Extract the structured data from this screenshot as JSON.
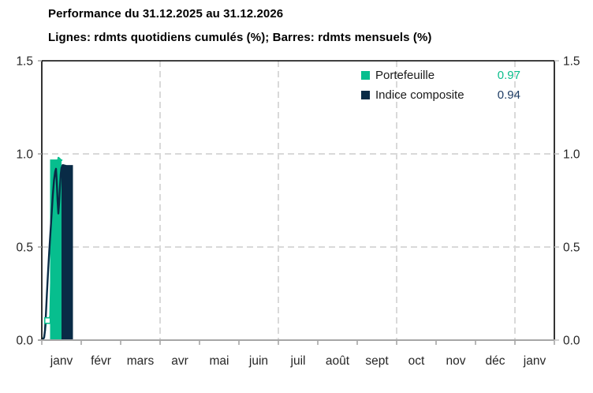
{
  "header": {
    "title": "Performance du 31.12.2025 au 31.12.2026",
    "subtitle": "Lignes: rdmts quotidiens cumulés (%); Barres: rdmts mensuels (%)"
  },
  "legend": {
    "items": [
      {
        "label": "Portefeuille",
        "value": "0.97",
        "swatch_color": "#07BE8E",
        "value_color": "#0CBE8C"
      },
      {
        "label": "Indice composite",
        "value": "0.94",
        "swatch_color": "#092B46",
        "value_color": "#1E3C64"
      }
    ]
  },
  "colors": {
    "portfolio": "#07BE8E",
    "index": "#092B46",
    "grid": "#D9D9D9",
    "x_axis_line": "#A6A6A6",
    "tick": "#A6A6A6",
    "plot_border": "#000000",
    "axis_text": "#262626"
  },
  "chart_data": {
    "type": "bar+line combo",
    "title": "Performance du 31.12.2025 au 31.12.2026",
    "subtitle": "Lignes: rdmts quotidiens cumulés (%); Barres: rdmts mensuels (%)",
    "x_categories": [
      "janv",
      "févr",
      "mars",
      "avr",
      "mai",
      "juin",
      "juil",
      "août",
      "sept",
      "oct",
      "nov",
      "déc",
      "janv"
    ],
    "y_ticks": [
      {
        "label": "0.0",
        "value": 0.0
      },
      {
        "label": "0.5",
        "value": 0.5
      },
      {
        "label": "1.0",
        "value": 1.0
      },
      {
        "label": "1.5",
        "value": 1.5
      }
    ],
    "ylim": [
      0.0,
      1.5
    ],
    "dual_axis": true,
    "legend_position": "top-right-inside",
    "grid": {
      "h_values": [
        0.5,
        1.0
      ],
      "v_month_boundaries": [
        3,
        6,
        9,
        12
      ]
    },
    "bars": {
      "month": "janv",
      "series": [
        {
          "name": "Portefeuille",
          "value": 0.97,
          "color": "#07BE8E",
          "u_from": 0.21,
          "u_to": 0.5
        },
        {
          "name": "Indice composite",
          "value": 0.94,
          "color": "#092B46",
          "u_from": 0.5,
          "u_to": 0.79
        }
      ]
    },
    "lines": [
      {
        "name": "Portefeuille",
        "color": "#07BE8E",
        "width": 2,
        "points": [
          [
            0,
            0
          ],
          [
            0.03,
            0.005
          ],
          [
            0.06,
            0.02
          ],
          [
            0.09,
            0.06
          ],
          [
            0.11,
            0.1
          ],
          [
            0.14,
            0.105
          ],
          [
            0.18,
            0.105
          ],
          [
            0.21,
            0.13
          ],
          [
            0.24,
            0.4
          ],
          [
            0.27,
            0.62
          ],
          [
            0.3,
            0.79
          ],
          [
            0.32,
            0.77
          ],
          [
            0.34,
            0.74
          ],
          [
            0.36,
            0.78
          ],
          [
            0.38,
            0.88
          ],
          [
            0.4,
            0.95
          ],
          [
            0.42,
            0.98
          ],
          [
            0.45,
            0.975
          ],
          [
            0.48,
            0.968
          ],
          [
            0.52,
            0.965
          ]
        ]
      },
      {
        "name": "Indice composite",
        "color": "#092B46",
        "width": 2.4,
        "points": [
          [
            0,
            0
          ],
          [
            0.03,
            0.004
          ],
          [
            0.06,
            0.015
          ],
          [
            0.08,
            0.05
          ],
          [
            0.1,
            0.12
          ],
          [
            0.13,
            0.25
          ],
          [
            0.16,
            0.37
          ],
          [
            0.19,
            0.48
          ],
          [
            0.22,
            0.58
          ],
          [
            0.25,
            0.68
          ],
          [
            0.28,
            0.78
          ],
          [
            0.31,
            0.86
          ],
          [
            0.34,
            0.905
          ],
          [
            0.36,
            0.92
          ],
          [
            0.38,
            0.85
          ],
          [
            0.4,
            0.75
          ],
          [
            0.42,
            0.68
          ],
          [
            0.44,
            0.74
          ],
          [
            0.46,
            0.82
          ],
          [
            0.48,
            0.89
          ],
          [
            0.5,
            0.925
          ],
          [
            0.53,
            0.94
          ],
          [
            0.62,
            0.935
          ]
        ]
      }
    ],
    "point_marker": {
      "series": "Portefeuille",
      "u": 0.145,
      "v": 0.105
    }
  }
}
